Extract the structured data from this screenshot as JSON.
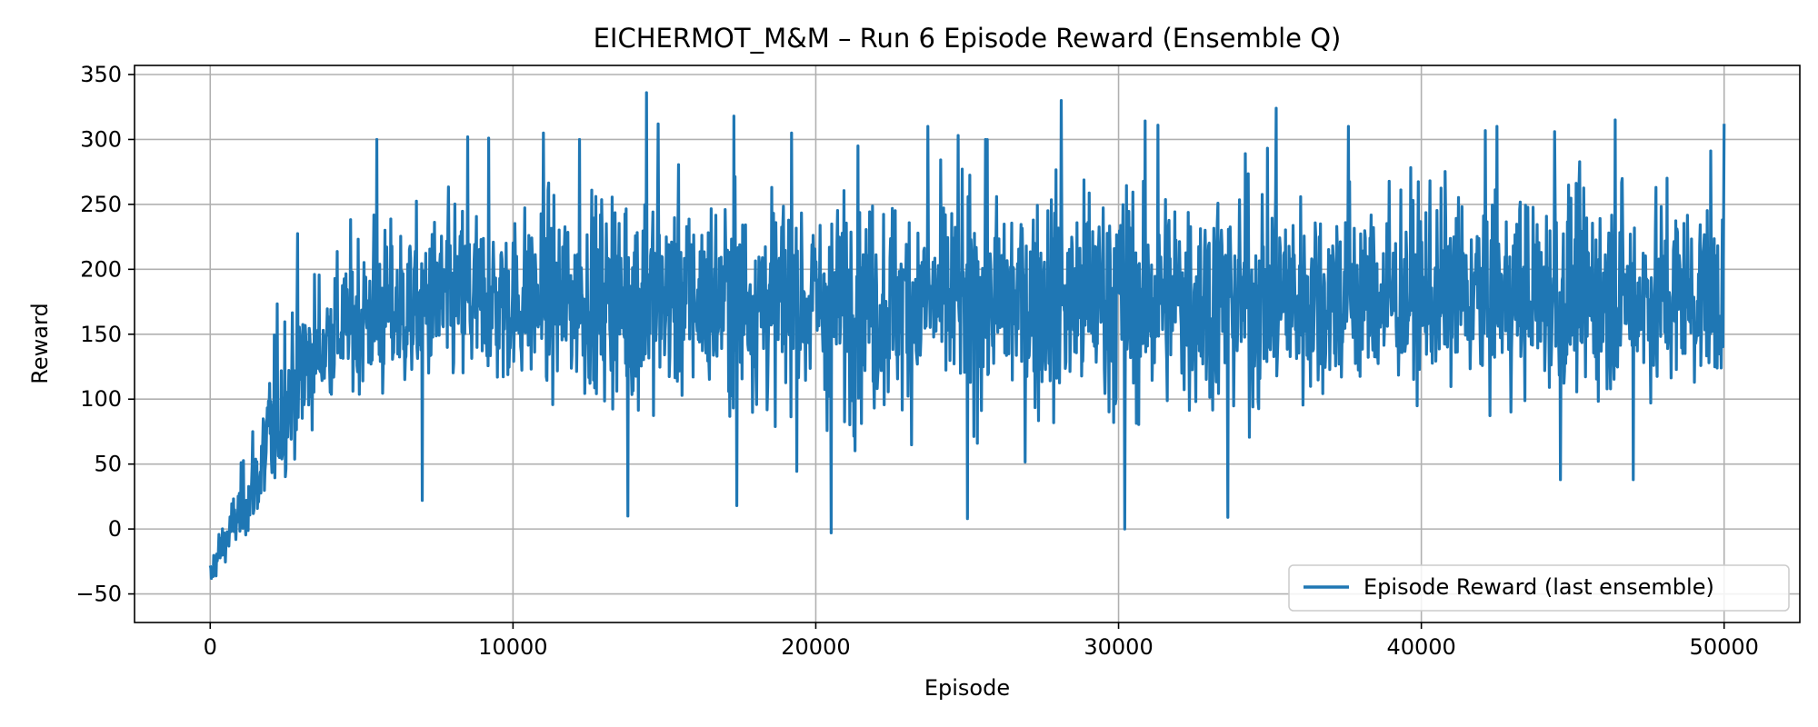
{
  "chart_data": {
    "type": "line",
    "title": "EICHERMOT_M&M – Run 6 Episode Reward (Ensemble Q)",
    "xlabel": "Episode",
    "ylabel": "Reward",
    "xlim": [
      -2500,
      52500
    ],
    "ylim": [
      -72,
      357
    ],
    "x_ticks": [
      0,
      10000,
      20000,
      30000,
      40000,
      50000
    ],
    "x_tick_labels": [
      "0",
      "10000",
      "20000",
      "30000",
      "40000",
      "50000"
    ],
    "y_ticks": [
      -50,
      0,
      50,
      100,
      150,
      200,
      250,
      300,
      350
    ],
    "y_tick_labels": [
      "−50",
      "0",
      "50",
      "100",
      "150",
      "200",
      "250",
      "300",
      "350"
    ],
    "grid": true,
    "legend_position": "lower-right",
    "series": [
      {
        "name": "Episode Reward (last ensemble)",
        "color": "#1f77b4",
        "x": [
          0,
          200,
          500,
          800,
          1200,
          1600,
          2000,
          2500,
          3000,
          3500,
          4000,
          4500,
          5000,
          6000,
          7000,
          8000,
          10000,
          12000,
          14000,
          16000,
          18000,
          20000,
          25000,
          30000,
          35000,
          40000,
          45000,
          50000
        ],
        "trend": [
          -40,
          -25,
          -10,
          5,
          15,
          35,
          60,
          95,
          115,
          130,
          145,
          155,
          160,
          168,
          170,
          172,
          173,
          174,
          175,
          175,
          175,
          175,
          176,
          176,
          176,
          176,
          176,
          176
        ],
        "upper": [
          -10,
          15,
          20,
          45,
          85,
          150,
          195,
          223,
          262,
          235,
          265,
          240,
          300,
          270,
          280,
          302,
          290,
          300,
          336,
          305,
          318,
          296,
          305,
          330,
          324,
          310,
          317,
          312
        ],
        "lower": [
          -52,
          -48,
          -42,
          -35,
          -25,
          -15,
          -5,
          0,
          5,
          60,
          55,
          70,
          45,
          25,
          45,
          50,
          50,
          45,
          12,
          35,
          18,
          -3,
          8,
          0,
          10,
          50,
          35,
          50
        ],
        "spikes": [
          {
            "x": 5500,
            "y": 300
          },
          {
            "x": 8500,
            "y": 302
          },
          {
            "x": 9200,
            "y": 301
          },
          {
            "x": 11000,
            "y": 305
          },
          {
            "x": 12200,
            "y": 300
          },
          {
            "x": 14400,
            "y": 336
          },
          {
            "x": 14800,
            "y": 312
          },
          {
            "x": 17300,
            "y": 318
          },
          {
            "x": 19200,
            "y": 305
          },
          {
            "x": 21400,
            "y": 295
          },
          {
            "x": 23700,
            "y": 310
          },
          {
            "x": 24700,
            "y": 303
          },
          {
            "x": 25600,
            "y": 300
          },
          {
            "x": 28100,
            "y": 330
          },
          {
            "x": 31300,
            "y": 311
          },
          {
            "x": 35200,
            "y": 324
          },
          {
            "x": 37600,
            "y": 310
          },
          {
            "x": 42500,
            "y": 310
          },
          {
            "x": 44400,
            "y": 306
          },
          {
            "x": 46400,
            "y": 315
          },
          {
            "x": 50000,
            "y": 312
          },
          {
            "x": 7000,
            "y": 22
          },
          {
            "x": 13800,
            "y": 10
          },
          {
            "x": 17400,
            "y": 18
          },
          {
            "x": 20500,
            "y": -3
          },
          {
            "x": 25000,
            "y": 8
          },
          {
            "x": 30200,
            "y": 0
          },
          {
            "x": 33600,
            "y": 9
          },
          {
            "x": 44600,
            "y": 38
          },
          {
            "x": 47000,
            "y": 38
          }
        ]
      }
    ]
  }
}
